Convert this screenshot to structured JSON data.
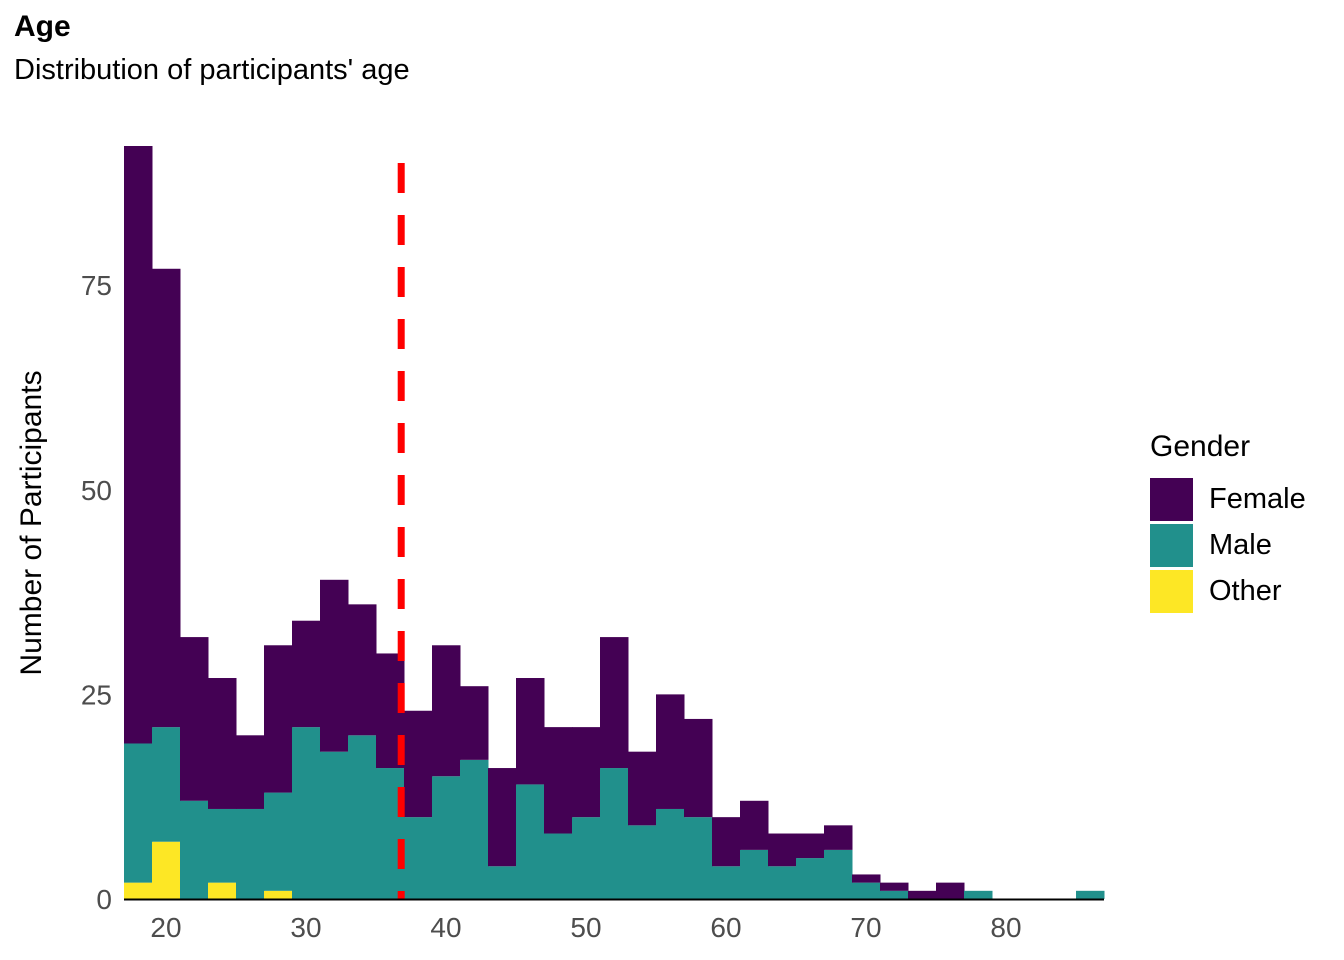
{
  "chart_data": {
    "type": "bar",
    "stacked": true,
    "title": "Age",
    "subtitle": "Distribution of participants' age",
    "xlabel": "",
    "ylabel": "Number of Participants",
    "xlim": [
      17,
      87
    ],
    "ylim": [
      0,
      92
    ],
    "x_ticks": [
      20,
      30,
      40,
      50,
      60,
      70,
      80
    ],
    "y_ticks": [
      0,
      25,
      50,
      75
    ],
    "grid": false,
    "legend": {
      "title": "Gender",
      "position": "right"
    },
    "bin_width": 2,
    "bin_starts": [
      17,
      19,
      21,
      23,
      25,
      27,
      29,
      31,
      33,
      35,
      37,
      39,
      41,
      43,
      45,
      47,
      49,
      51,
      53,
      55,
      57,
      59,
      61,
      63,
      65,
      67,
      69,
      71,
      73,
      75,
      77,
      79,
      81,
      83,
      85
    ],
    "series": [
      {
        "name": "Other",
        "color": "#FDE725",
        "values": [
          2,
          7,
          0,
          2,
          0,
          1,
          0,
          0,
          0,
          0,
          0,
          0,
          0,
          0,
          0,
          0,
          0,
          0,
          0,
          0,
          0,
          0,
          0,
          0,
          0,
          0,
          0,
          0,
          0,
          0,
          0,
          0,
          0,
          0,
          0
        ]
      },
      {
        "name": "Male",
        "color": "#21908C",
        "values": [
          17,
          14,
          12,
          9,
          11,
          12,
          21,
          18,
          20,
          16,
          10,
          15,
          17,
          4,
          14,
          8,
          10,
          16,
          9,
          11,
          10,
          4,
          6,
          4,
          5,
          6,
          2,
          1,
          0,
          0,
          1,
          0,
          0,
          0,
          1
        ]
      },
      {
        "name": "Female",
        "color": "#440154",
        "values": [
          73,
          56,
          20,
          16,
          9,
          18,
          13,
          21,
          16,
          14,
          13,
          16,
          9,
          12,
          13,
          13,
          11,
          16,
          9,
          14,
          12,
          6,
          6,
          4,
          3,
          3,
          1,
          1,
          1,
          2,
          0,
          0,
          0,
          0,
          0
        ]
      }
    ],
    "reference_line": {
      "x": 36.8,
      "color": "#FF0000",
      "style": "dashed"
    }
  }
}
